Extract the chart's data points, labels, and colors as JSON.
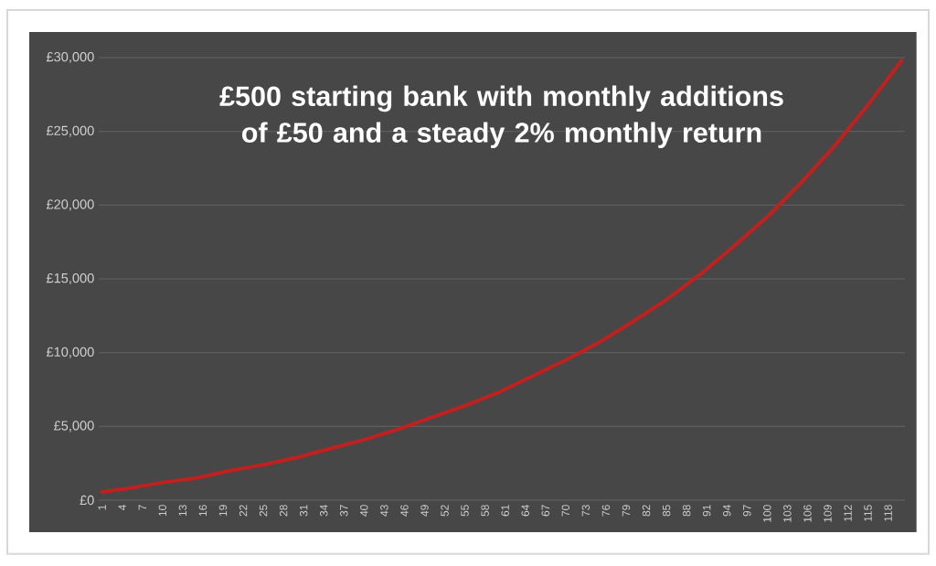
{
  "chart_data": {
    "type": "line",
    "title": "£500 starting bank with monthly additions of £50 and a steady 2% monthly return",
    "x": [
      1,
      5,
      10,
      15,
      20,
      25,
      30,
      35,
      40,
      45,
      50,
      55,
      60,
      65,
      70,
      75,
      80,
      85,
      90,
      95,
      100,
      105,
      110,
      115,
      120
    ],
    "series": [
      {
        "color": "#c0211f",
        "values": [
          560,
          800,
          1200,
          1500,
          2000,
          2400,
          2900,
          3500,
          4100,
          4800,
          5600,
          6400,
          7300,
          8400,
          9500,
          10700,
          12100,
          13600,
          15300,
          17200,
          19200,
          21500,
          24000,
          26800,
          29800
        ]
      }
    ],
    "xlim": [
      0.5,
      120.5
    ],
    "xticks": [
      1,
      4,
      7,
      10,
      13,
      16,
      19,
      22,
      25,
      28,
      31,
      34,
      37,
      40,
      43,
      46,
      49,
      52,
      55,
      58,
      61,
      64,
      67,
      70,
      73,
      76,
      79,
      82,
      85,
      88,
      91,
      94,
      97,
      100,
      103,
      106,
      109,
      112,
      115,
      118
    ],
    "ylim": [
      0,
      30000
    ],
    "yticks": [
      {
        "value": 0,
        "label": "£0"
      },
      {
        "value": 5000,
        "label": "£5,000"
      },
      {
        "value": 10000,
        "label": "£10,000"
      },
      {
        "value": 15000,
        "label": "£15,000"
      },
      {
        "value": 20000,
        "label": "£20,000"
      },
      {
        "value": 25000,
        "label": "£25,000"
      },
      {
        "value": 30000,
        "label": "£30,000"
      }
    ],
    "grid": "y",
    "marker": "none",
    "line_style": "solid"
  }
}
